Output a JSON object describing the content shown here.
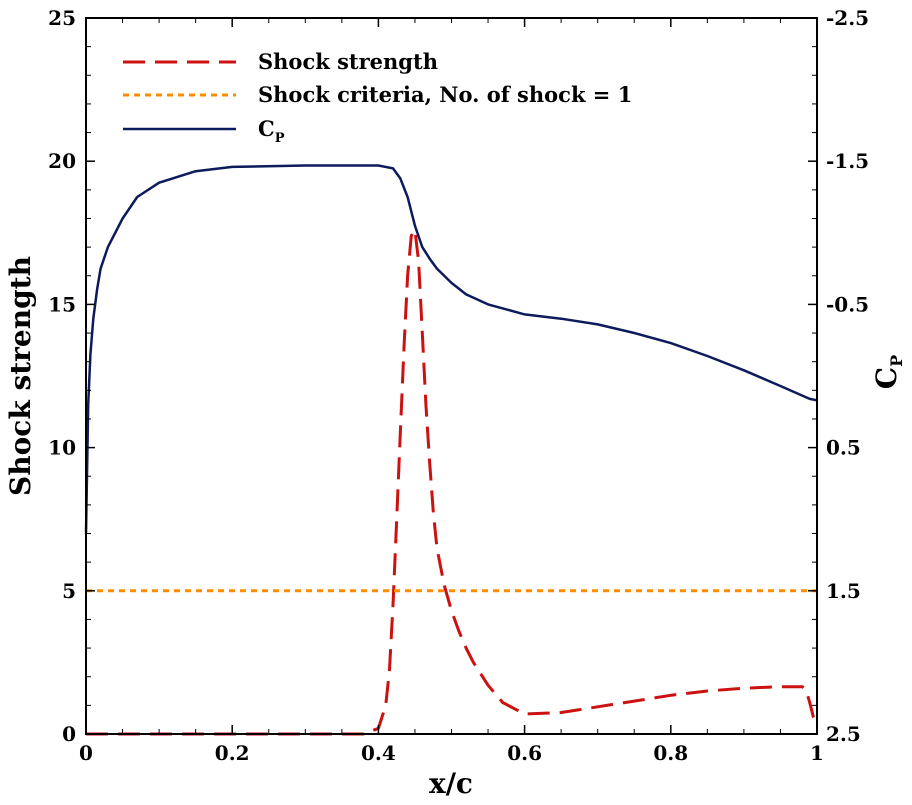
{
  "chart_data": {
    "type": "line",
    "title": "",
    "xlabel": "x/c",
    "ylabel_left": "Shock strength",
    "ylabel_right": {
      "main": "C",
      "sub": "P"
    },
    "xlim": [
      0,
      1
    ],
    "ylim_left": [
      0,
      25
    ],
    "ylim_right": [
      2.5,
      -2.5
    ],
    "x_ticks": [
      {
        "value": 0,
        "label": "0"
      },
      {
        "value": 0.2,
        "label": "0.2"
      },
      {
        "value": 0.4,
        "label": "0.4"
      },
      {
        "value": 0.6,
        "label": "0.6"
      },
      {
        "value": 0.8,
        "label": "0.8"
      },
      {
        "value": 1,
        "label": "1"
      }
    ],
    "y_left_ticks": [
      {
        "value": 0,
        "label": "0"
      },
      {
        "value": 5,
        "label": "5"
      },
      {
        "value": 10,
        "label": "10"
      },
      {
        "value": 15,
        "label": "15"
      },
      {
        "value": 20,
        "label": "20"
      },
      {
        "value": 25,
        "label": "25"
      }
    ],
    "y_right_ticks": [
      {
        "value": 2.5,
        "label": "2.5"
      },
      {
        "value": 1.5,
        "label": "1.5"
      },
      {
        "value": 0.5,
        "label": "0.5"
      },
      {
        "value": -0.5,
        "label": "-0.5"
      },
      {
        "value": -1.5,
        "label": "-1.5"
      },
      {
        "value": -2.5,
        "label": "-2.5"
      }
    ],
    "legend_position": "top-left",
    "series": [
      {
        "name": "Shock strength",
        "legend": {
          "main": "Shock strength",
          "sub": ""
        },
        "axis": "left",
        "color": "#cc1111",
        "style": "dashed",
        "x": [
          0,
          0.1,
          0.2,
          0.3,
          0.38,
          0.4,
          0.41,
          0.415,
          0.42,
          0.425,
          0.43,
          0.435,
          0.44,
          0.445,
          0.45,
          0.455,
          0.46,
          0.465,
          0.47,
          0.475,
          0.48,
          0.49,
          0.5,
          0.51,
          0.52,
          0.53,
          0.55,
          0.57,
          0.6,
          0.65,
          0.7,
          0.75,
          0.8,
          0.85,
          0.9,
          0.95,
          0.98,
          0.985,
          0.99,
          0.995,
          1
        ],
        "y": [
          0,
          0,
          0,
          0,
          0,
          0.2,
          1.0,
          2.2,
          4.5,
          7.5,
          10.5,
          13.5,
          16.0,
          17.4,
          17.6,
          16.5,
          14.0,
          11.5,
          9.5,
          7.8,
          6.5,
          5.2,
          4.3,
          3.6,
          3.0,
          2.5,
          1.7,
          1.1,
          0.7,
          0.75,
          0.95,
          1.15,
          1.35,
          1.5,
          1.6,
          1.65,
          1.65,
          1.55,
          1.1,
          0.6,
          0.4
        ]
      },
      {
        "name": "Shock criteria, No. of shock = 1",
        "legend": {
          "main": "Shock criteria, No. of shock = 1",
          "sub": ""
        },
        "axis": "left",
        "color": "#ff8c00",
        "style": "dotted",
        "x": [
          0,
          1
        ],
        "y": [
          5,
          5
        ]
      },
      {
        "name": "CP",
        "legend": {
          "main": "C",
          "sub": "P"
        },
        "axis": "right",
        "color": "#0d1a5c",
        "style": "solid",
        "x": [
          0,
          0.003,
          0.006,
          0.01,
          0.015,
          0.02,
          0.03,
          0.05,
          0.07,
          0.1,
          0.15,
          0.2,
          0.3,
          0.4,
          0.42,
          0.43,
          0.44,
          0.45,
          0.46,
          0.47,
          0.48,
          0.5,
          0.52,
          0.55,
          0.6,
          0.65,
          0.7,
          0.75,
          0.8,
          0.85,
          0.9,
          0.95,
          0.99,
          1
        ],
        "y": [
          1.1,
          0.2,
          -0.15,
          -0.4,
          -0.6,
          -0.75,
          -0.9,
          -1.1,
          -1.25,
          -1.35,
          -1.43,
          -1.46,
          -1.47,
          -1.47,
          -1.45,
          -1.38,
          -1.25,
          -1.05,
          -0.9,
          -0.82,
          -0.75,
          -0.65,
          -0.57,
          -0.5,
          -0.43,
          -0.4,
          -0.36,
          -0.3,
          -0.23,
          -0.14,
          -0.04,
          0.07,
          0.16,
          0.17
        ]
      }
    ]
  }
}
